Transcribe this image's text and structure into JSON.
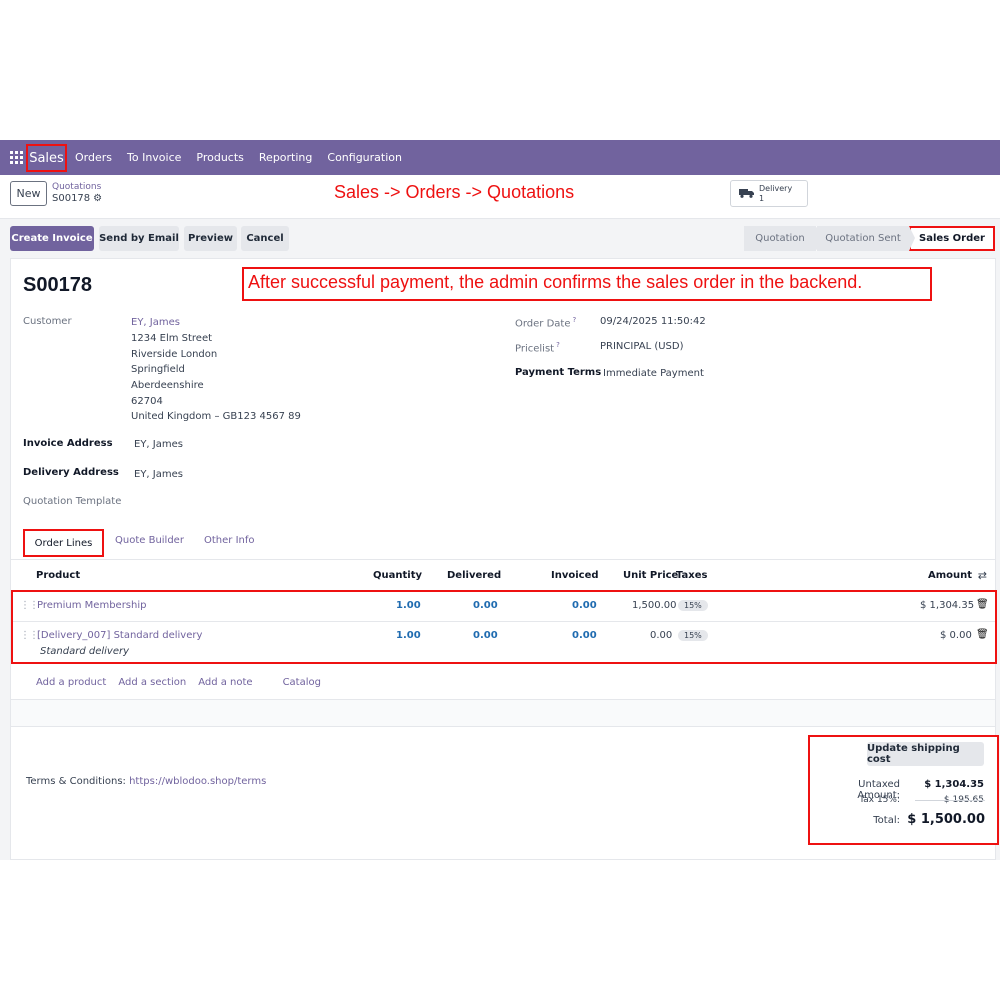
{
  "navbar": {
    "app_name": "Sales",
    "menu": [
      "Orders",
      "To Invoice",
      "Products",
      "Reporting",
      "Configuration"
    ]
  },
  "control": {
    "new_label": "New",
    "breadcrumb_parent": "Quotations",
    "breadcrumb_current": "S00178",
    "annotation_path": "Sales -> Orders -> Quotations",
    "delivery_label": "Delivery",
    "delivery_count": "1"
  },
  "actions": {
    "create_invoice": "Create Invoice",
    "send_by_email": "Send by Email",
    "preview": "Preview",
    "cancel": "Cancel",
    "stages": [
      "Quotation",
      "Quotation Sent",
      "Sales Order"
    ]
  },
  "record": {
    "name": "S00178",
    "annotation": "After successful payment, the admin confirms the sales order in the backend.",
    "customer_label": "Customer",
    "customer_name": "EY, James",
    "customer_address": [
      "1234 Elm Street",
      "Riverside London",
      "Springfield",
      "Aberdeenshire",
      "62704",
      "United Kingdom – GB123 4567 89"
    ],
    "invoice_address_label": "Invoice Address",
    "invoice_address": "EY, James",
    "delivery_address_label": "Delivery Address",
    "delivery_address": "EY, James",
    "quotation_template_label": "Quotation Template",
    "order_date_label": "Order Date",
    "order_date": "09/24/2025 11:50:42",
    "pricelist_label": "Pricelist",
    "pricelist": "PRINCIPAL (USD)",
    "payment_terms_label": "Payment Terms",
    "payment_terms": "Immediate Payment",
    "help_mark": "?"
  },
  "tabs": [
    "Order Lines",
    "Quote Builder",
    "Other Info"
  ],
  "table": {
    "headers": {
      "product": "Product",
      "quantity": "Quantity",
      "delivered": "Delivered",
      "invoiced": "Invoiced",
      "unit_price": "Unit Price",
      "taxes": "Taxes",
      "amount": "Amount"
    },
    "rows": [
      {
        "product": "Premium Membership",
        "quantity": "1.00",
        "delivered": "0.00",
        "invoiced": "0.00",
        "unit_price": "1,500.00",
        "tax": "15%",
        "amount": "$ 1,304.35"
      },
      {
        "product": "[Delivery_007] Standard delivery",
        "description": "Standard delivery",
        "quantity": "1.00",
        "delivered": "0.00",
        "invoiced": "0.00",
        "unit_price": "0.00",
        "tax": "15%",
        "amount": "$ 0.00"
      }
    ],
    "add_links": [
      "Add a product",
      "Add a section",
      "Add a note",
      "Catalog"
    ]
  },
  "footer": {
    "terms_label": "Terms & Conditions:",
    "terms_link": "https://wblodoo.shop/terms",
    "update_shipping": "Update shipping cost",
    "untaxed_label": "Untaxed Amount:",
    "untaxed_value": "$ 1,304.35",
    "tax_label": "Tax 15%:",
    "tax_value": "$ 195.65",
    "total_label": "Total:",
    "total_value": "$ 1,500.00"
  },
  "colors": {
    "brand": "#71639e",
    "annotation": "#ee1111",
    "link": "#71639e",
    "number": "#1f6bb0"
  }
}
